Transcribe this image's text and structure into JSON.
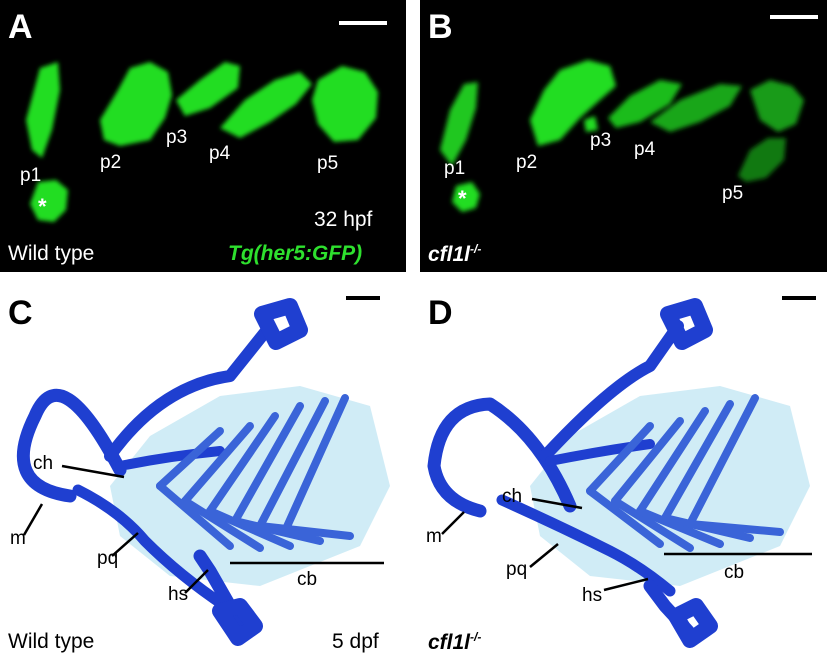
{
  "panels": {
    "A": {
      "letter": "A",
      "labels": {
        "p1": "p1",
        "p2": "p2",
        "p3": "p3",
        "p4": "p4",
        "p5": "p5"
      },
      "asterisk": "*",
      "stage": "32 hpf",
      "genotype": "Wild type",
      "transgene": "Tg(her5:GFP)"
    },
    "B": {
      "letter": "B",
      "labels": {
        "p1": "p1",
        "p2": "p2",
        "p3": "p3",
        "p4": "p4",
        "p5": "p5"
      },
      "asterisk": "*",
      "genotype_base": "cfl1l",
      "genotype_sup": "-/-"
    },
    "C": {
      "letter": "C",
      "labels": {
        "ch": "ch",
        "m": "m",
        "pq": "pq",
        "hs": "hs",
        "cb": "cb"
      },
      "genotype": "Wild type",
      "stage": "5 dpf"
    },
    "D": {
      "letter": "D",
      "labels": {
        "ch": "ch",
        "m": "m",
        "pq": "pq",
        "hs": "hs",
        "cb": "cb"
      },
      "genotype_base": "cfl1l",
      "genotype_sup": "-/-"
    }
  },
  "colors": {
    "fluor_bg": "#000000",
    "gfp": "#22dd22",
    "cartilage": "#1f3fd0",
    "cartilage_light": "#7fc6e4",
    "transgene_text": "#2ee02e"
  }
}
